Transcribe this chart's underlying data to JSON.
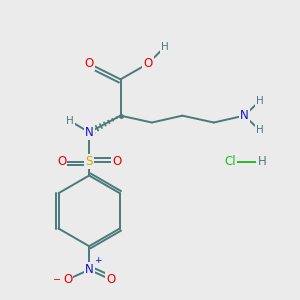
{
  "bg_color": "#ebebeb",
  "bond_color": "#4a7a7a",
  "bond_width": 1.4,
  "dbo": 0.012,
  "atom_colors": {
    "O": "#ee0000",
    "N": "#1111cc",
    "S": "#ccaa00",
    "H": "#4a7a7a",
    "C": "#4a7a7a",
    "Cl": "#22bb22",
    "N+": "#1111cc",
    "O-": "#ee0000"
  },
  "font_size": 8.5,
  "small_font_size": 7.5,
  "figsize": [
    3.0,
    3.0
  ],
  "dpi": 100
}
